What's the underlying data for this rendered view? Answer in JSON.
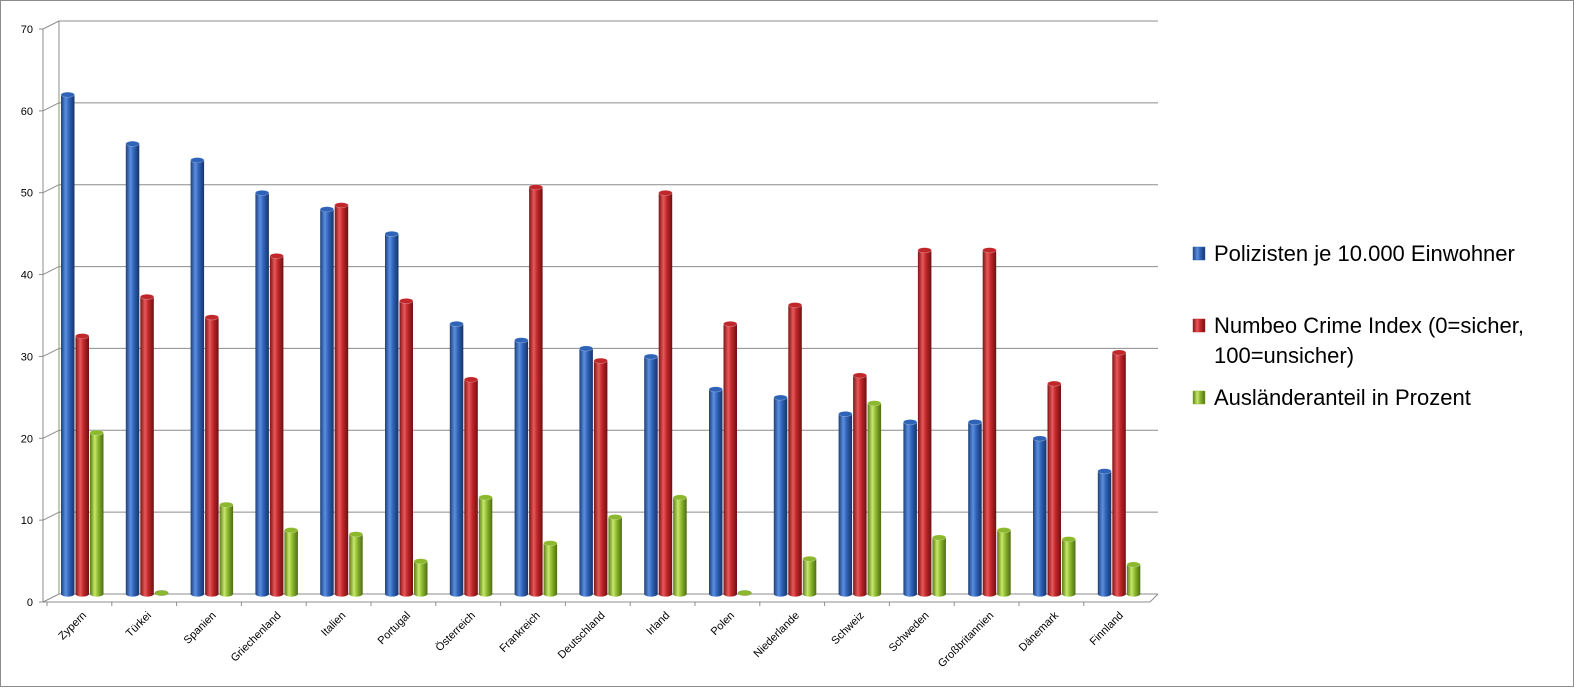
{
  "chart_data": {
    "type": "bar",
    "style": "3d-cylinder",
    "categories": [
      "Zypern",
      "Türkei",
      "Spanien",
      "Griechenland",
      "Italien",
      "Portugal",
      "Österreich",
      "Frankreich",
      "Deutschland",
      "Irland",
      "Polen",
      "Niederlande",
      "Schweiz",
      "Schweden",
      "Großbritannien",
      "Dänemark",
      "Finnland"
    ],
    "series": [
      {
        "name": "Polizisten je 10.000 Einwohner",
        "color": "#2e63b8",
        "values": [
          61,
          55,
          53,
          49,
          47,
          44,
          33,
          31,
          30,
          29,
          25,
          24,
          22,
          21,
          21,
          19,
          15
        ]
      },
      {
        "name": "Numbeo Crime Index (0=sicher, 100=unsicher)",
        "color": "#c0272a",
        "values": [
          31.5,
          36.3,
          33.8,
          41.3,
          47.5,
          35.8,
          26.2,
          49.7,
          28.5,
          49.0,
          33.0,
          35.3,
          26.7,
          42.0,
          42.0,
          25.7,
          29.5
        ]
      },
      {
        "name": "Ausländeranteil in Prozent",
        "color": "#8cb82e",
        "values": [
          19.7,
          0,
          10.9,
          7.8,
          7.3,
          4.0,
          11.8,
          6.2,
          9.4,
          11.8,
          0,
          4.3,
          23.3,
          6.9,
          7.8,
          6.7,
          3.6
        ]
      }
    ],
    "ylim": [
      0,
      70
    ],
    "yticks": [
      0,
      10,
      20,
      30,
      40,
      50,
      60,
      70
    ],
    "grid": true,
    "legend_position": "right",
    "title": "",
    "xlabel": "",
    "ylabel": ""
  },
  "legend": {
    "items": [
      {
        "lines": [
          "Polizisten je 10.000 Einwohner"
        ]
      },
      {
        "lines": [
          "Numbeo Crime Index (0=sicher,",
          "100=unsicher)"
        ]
      },
      {
        "lines": [
          "Ausländeranteil in Prozent"
        ]
      }
    ]
  }
}
